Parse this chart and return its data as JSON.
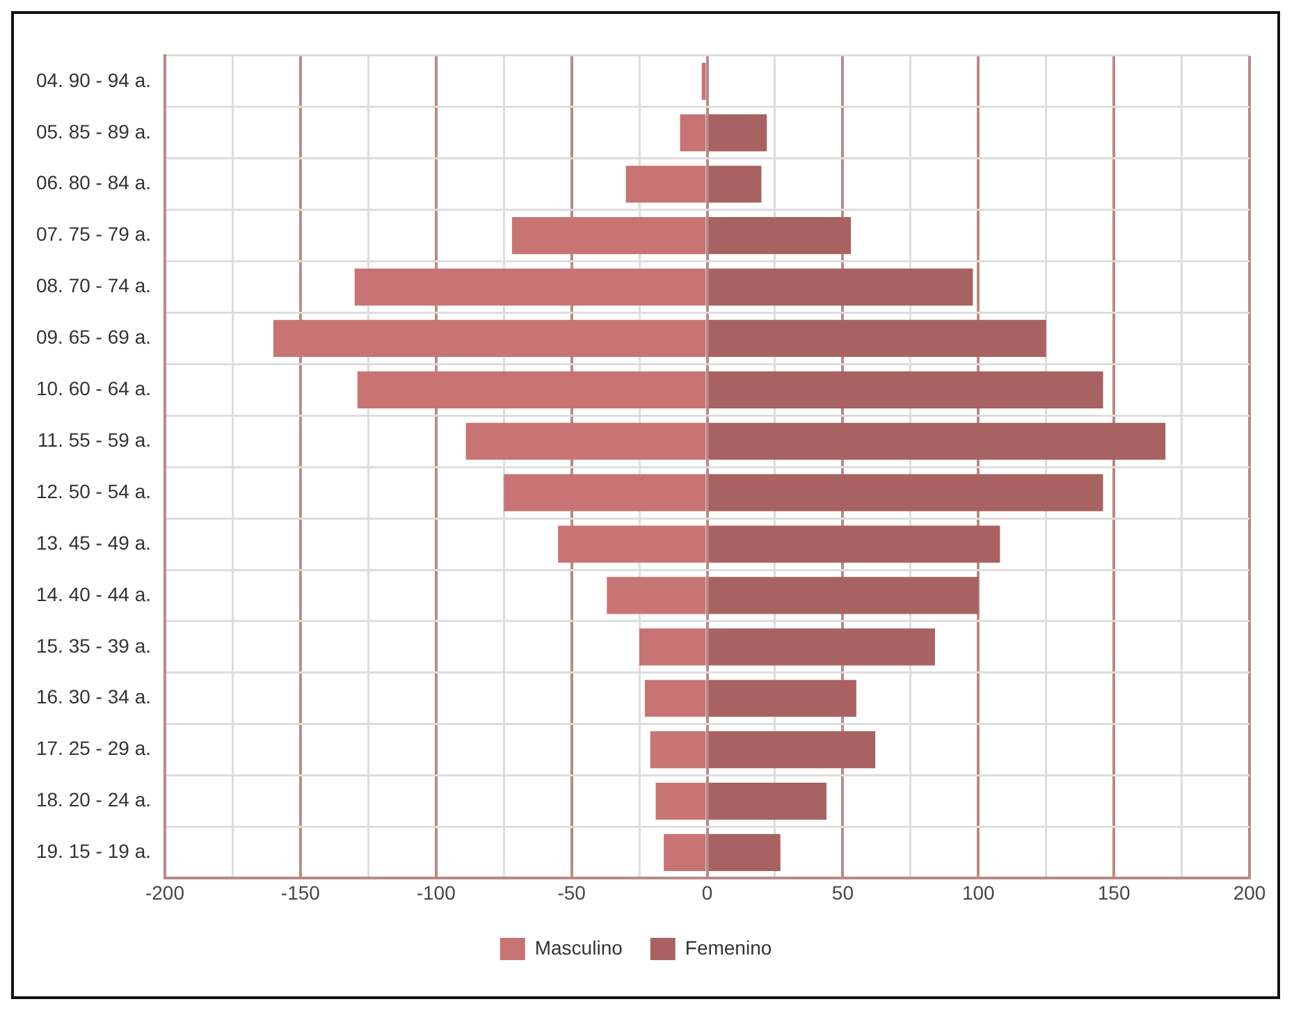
{
  "chart_data": {
    "type": "bar",
    "orientation": "horizontal",
    "stacked": true,
    "categories": [
      "04. 90 - 94 a.",
      "05. 85 - 89 a.",
      "06. 80 - 84 a.",
      "07. 75 - 79 a.",
      "08. 70 - 74 a.",
      "09. 65 - 69 a.",
      "10. 60 - 64 a.",
      "11. 55 - 59 a.",
      "12. 50 - 54 a.",
      "13. 45 - 49 a.",
      "14. 40 - 44 a.",
      "15. 35 - 39 a.",
      "16. 30 - 34 a.",
      "17. 25 - 29 a.",
      "18. 20 - 24 a.",
      "19. 15 - 19 a."
    ],
    "series": [
      {
        "name": "Masculino",
        "color": "#c87474",
        "values": [
          -2,
          -10,
          -30,
          -72,
          -130,
          -160,
          -129,
          -89,
          -75,
          -55,
          -37,
          -25,
          -23,
          -21,
          -19,
          -16
        ]
      },
      {
        "name": "Femenino",
        "color": "#a86262",
        "values": [
          0,
          22,
          20,
          53,
          98,
          125,
          146,
          169,
          146,
          108,
          100,
          84,
          55,
          62,
          44,
          27
        ]
      }
    ],
    "xlim": [
      -200,
      200
    ],
    "xticks": [
      -200,
      {
        "value": -175,
        "label": null
      },
      -150,
      {
        "value": -125,
        "label": null
      },
      -100,
      {
        "value": -75,
        "label": null
      },
      -50,
      {
        "value": -25,
        "label": null
      },
      0,
      {
        "value": 25,
        "label": null
      },
      50,
      {
        "value": 75,
        "label": null
      },
      100,
      {
        "value": 125,
        "label": null
      },
      150,
      {
        "value": 175,
        "label": null
      },
      200
    ],
    "grid": true,
    "legend": "bottom"
  }
}
